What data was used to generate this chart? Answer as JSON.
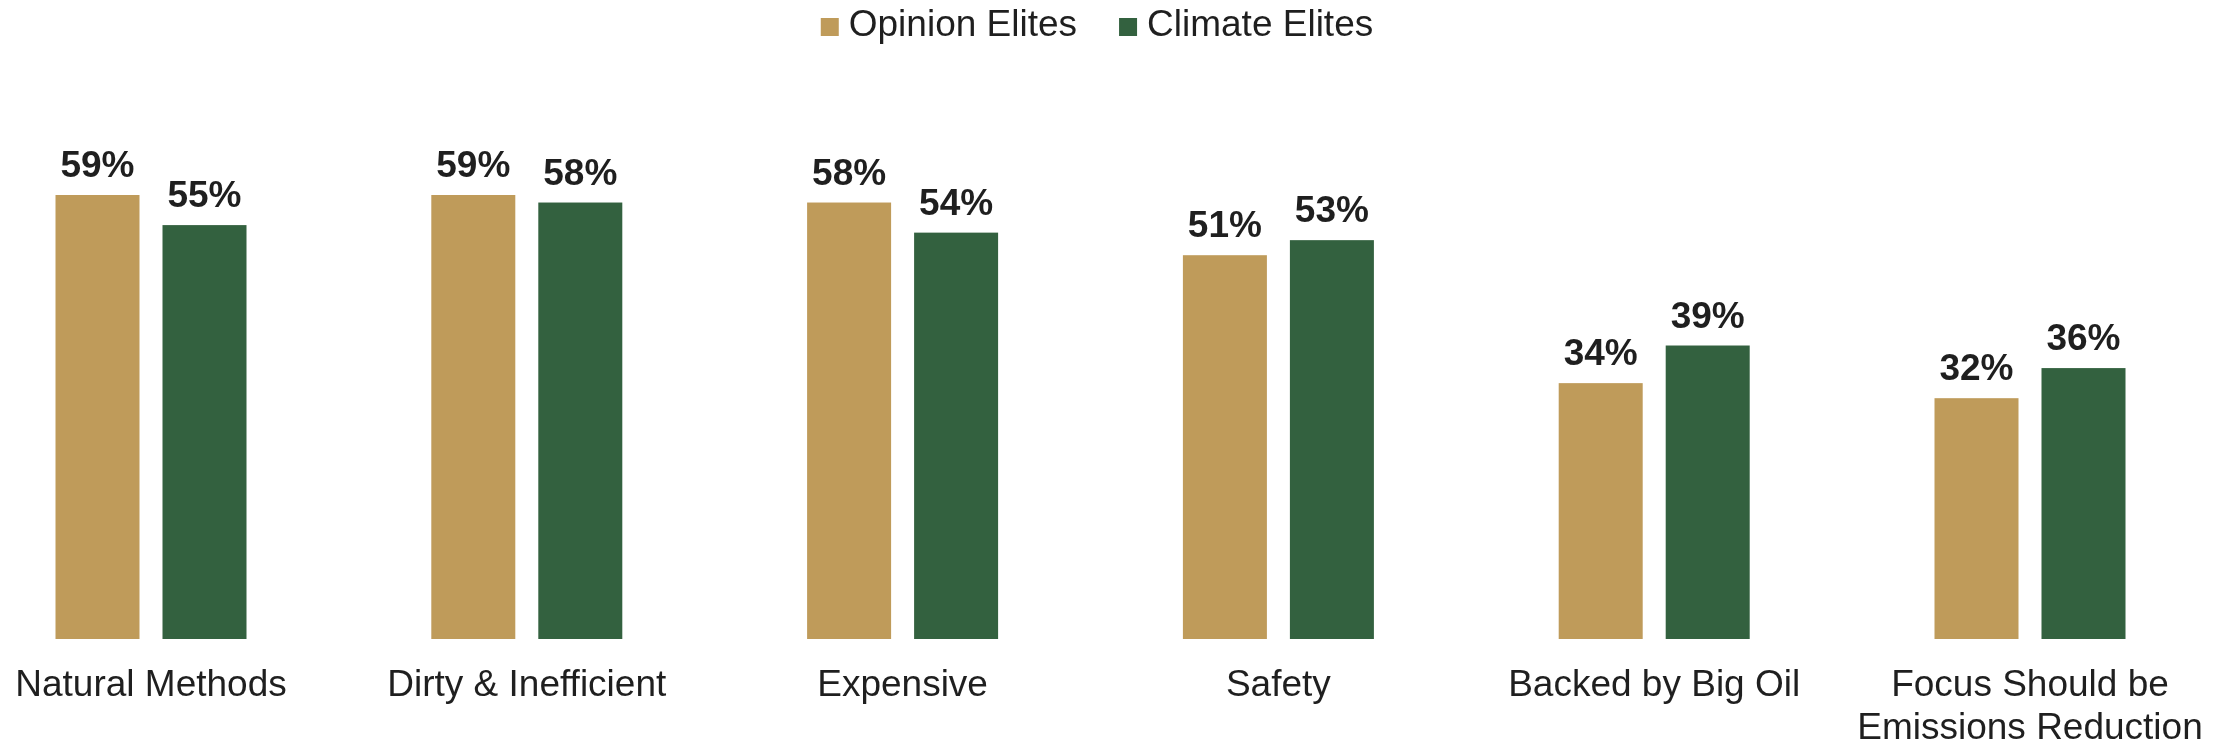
{
  "chart_data": {
    "type": "bar",
    "categories": [
      "Natural Methods",
      "Dirty & Inefficient",
      "Expensive",
      "Safety",
      "Backed by Big Oil",
      "Focus Should be Emissions Reduction"
    ],
    "series": [
      {
        "name": "Opinion Elites",
        "color": "#bf9b5a",
        "values": [
          59,
          59,
          58,
          51,
          34,
          32
        ],
        "value_labels": [
          "59%",
          "59%",
          "58%",
          "51%",
          "34%",
          "32%"
        ]
      },
      {
        "name": "Climate Elites",
        "color": "#33613f",
        "values": [
          55,
          58,
          54,
          53,
          39,
          36
        ],
        "value_labels": [
          "55%",
          "58%",
          "54%",
          "53%",
          "39%",
          "36%"
        ]
      }
    ],
    "legend": "top"
  }
}
